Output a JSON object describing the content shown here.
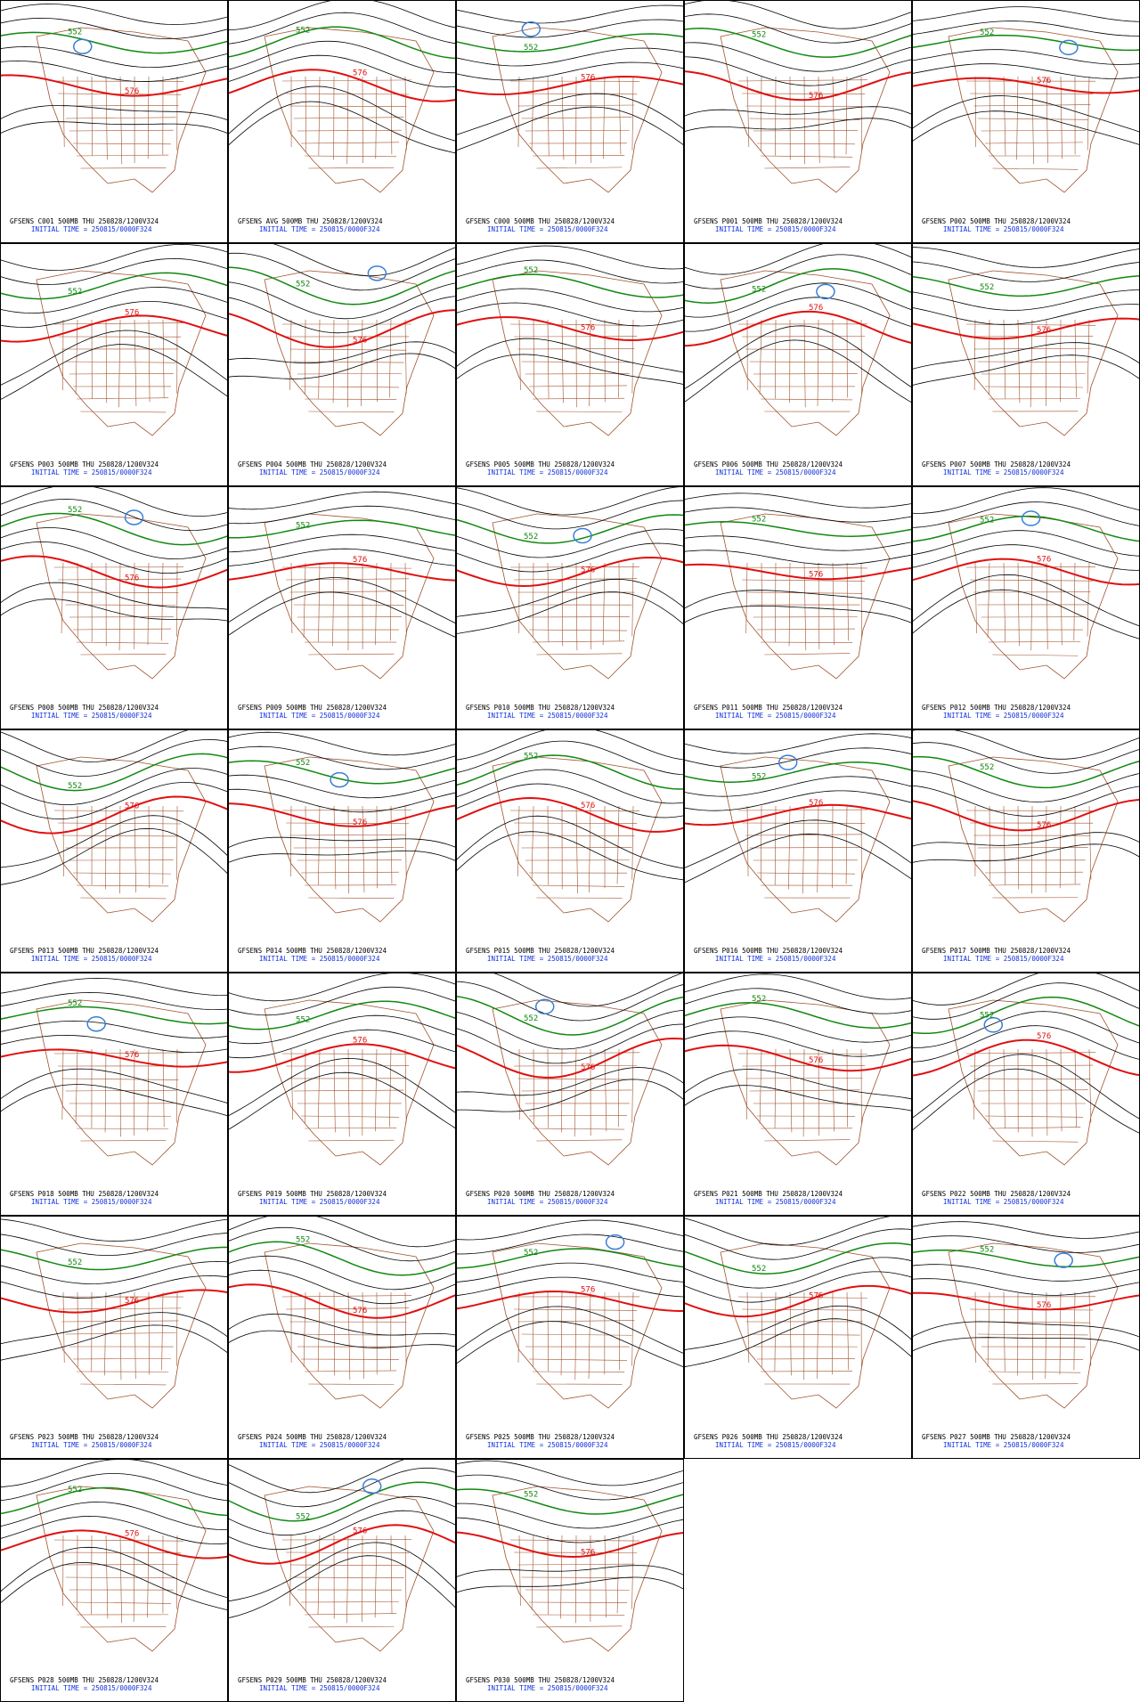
{
  "panels": [
    {
      "title": "GFSENS C001 500MB THU 250828/1200V324",
      "init": "INITIAL TIME = 250815/0000F324",
      "labels": [
        "552",
        "576"
      ]
    },
    {
      "title": "GFSENS AVG 500MB THU 250828/1200V324",
      "init": "INITIAL TIME = 250815/0000F324",
      "labels": [
        "552",
        "576"
      ]
    },
    {
      "title": "GFSENS C000 500MB THU 250828/1200V324",
      "init": "INITIAL TIME = 250815/0000F324",
      "labels": [
        "552",
        "576"
      ]
    },
    {
      "title": "GFSENS P001 500MB THU 250828/1200V324",
      "init": "INITIAL TIME = 250815/0000F324",
      "labels": [
        "552",
        "576"
      ]
    },
    {
      "title": "GFSENS P002 500MB THU 250828/1200V324",
      "init": "INITIAL TIME = 250815/0000F324",
      "labels": [
        "552",
        "576"
      ]
    },
    {
      "title": "GFSENS P003 500MB THU 250828/1200V324",
      "init": "INITIAL TIME = 250815/0000F324",
      "labels": [
        "552",
        "576"
      ]
    },
    {
      "title": "GFSENS P004 500MB THU 250828/1200V324",
      "init": "INITIAL TIME = 250815/0000F324",
      "labels": [
        "552",
        "576"
      ]
    },
    {
      "title": "GFSENS P005 500MB THU 250828/1200V324",
      "init": "INITIAL TIME = 250815/0000F324",
      "labels": [
        "552",
        "576"
      ]
    },
    {
      "title": "GFSENS P006 500MB THU 250828/1200V324",
      "init": "INITIAL TIME = 250815/0000F324",
      "labels": [
        "552",
        "576"
      ]
    },
    {
      "title": "GFSENS P007 500MB THU 250828/1200V324",
      "init": "INITIAL TIME = 250815/0000F324",
      "labels": [
        "552",
        "576"
      ]
    },
    {
      "title": "GFSENS P008 500MB THU 250828/1200V324",
      "init": "INITIAL TIME = 250815/0000F324",
      "labels": [
        "552",
        "576"
      ]
    },
    {
      "title": "GFSENS P009 500MB THU 250828/1200V324",
      "init": "INITIAL TIME = 250815/0000F324",
      "labels": [
        "552",
        "576"
      ]
    },
    {
      "title": "GFSENS P010 500MB THU 250828/1200V324",
      "init": "INITIAL TIME = 250815/0000F324",
      "labels": [
        "552",
        "576"
      ]
    },
    {
      "title": "GFSENS P011 500MB THU 250828/1200V324",
      "init": "INITIAL TIME = 250815/0000F324",
      "labels": [
        "552",
        "576"
      ]
    },
    {
      "title": "GFSENS P012 500MB THU 250828/1200V324",
      "init": "INITIAL TIME = 250815/0000F324",
      "labels": [
        "552",
        "576"
      ]
    },
    {
      "title": "GFSENS P013 500MB THU 250828/1200V324",
      "init": "INITIAL TIME = 250815/0000F324",
      "labels": [
        "552",
        "576"
      ]
    },
    {
      "title": "GFSENS P014 500MB THU 250828/1200V324",
      "init": "INITIAL TIME = 250815/0000F324",
      "labels": [
        "552",
        "576"
      ]
    },
    {
      "title": "GFSENS P015 500MB THU 250828/1200V324",
      "init": "INITIAL TIME = 250815/0000F324",
      "labels": [
        "552",
        "576"
      ]
    },
    {
      "title": "GFSENS P016 500MB THU 250828/1200V324",
      "init": "INITIAL TIME = 250815/0000F324",
      "labels": [
        "552",
        "576"
      ]
    },
    {
      "title": "GFSENS P017 500MB THU 250828/1200V324",
      "init": "INITIAL TIME = 250815/0000F324",
      "labels": [
        "552",
        "576"
      ]
    },
    {
      "title": "GFSENS P018 500MB THU 250828/1200V324",
      "init": "INITIAL TIME = 250815/0000F324",
      "labels": [
        "552",
        "576"
      ]
    },
    {
      "title": "GFSENS P019 500MB THU 250828/1200V324",
      "init": "INITIAL TIME = 250815/0000F324",
      "labels": [
        "552",
        "576"
      ]
    },
    {
      "title": "GFSENS P020 500MB THU 250828/1200V324",
      "init": "INITIAL TIME = 250815/0000F324",
      "labels": [
        "552",
        "576"
      ]
    },
    {
      "title": "GFSENS P021 500MB THU 250828/1200V324",
      "init": "INITIAL TIME = 250815/0000F324",
      "labels": [
        "552",
        "576"
      ]
    },
    {
      "title": "GFSENS P022 500MB THU 250828/1200V324",
      "init": "INITIAL TIME = 250815/0000F324",
      "labels": [
        "552",
        "576"
      ]
    },
    {
      "title": "GFSENS P023 500MB THU 250828/1200V324",
      "init": "INITIAL TIME = 250815/0000F324",
      "labels": [
        "552",
        "576"
      ]
    },
    {
      "title": "GFSENS P024 500MB THU 250828/1200V324",
      "init": "INITIAL TIME = 250815/0000F324",
      "labels": [
        "552",
        "576"
      ]
    },
    {
      "title": "GFSENS P025 500MB THU 250828/1200V324",
      "init": "INITIAL TIME = 250815/0000F324",
      "labels": [
        "552",
        "576"
      ]
    },
    {
      "title": "GFSENS P026 500MB THU 250828/1200V324",
      "init": "INITIAL TIME = 250815/0000F324",
      "labels": [
        "552",
        "576"
      ]
    },
    {
      "title": "GFSENS P027 500MB THU 250828/1200V324",
      "init": "INITIAL TIME = 250815/0000F324",
      "labels": [
        "552",
        "576"
      ]
    },
    {
      "title": "GFSENS P028 500MB THU 250828/1200V324",
      "init": "INITIAL TIME = 250815/0000F324",
      "labels": [
        "552",
        "576"
      ]
    },
    {
      "title": "GFSENS P029 500MB THU 250828/1200V324",
      "init": "INITIAL TIME = 250815/0000F324",
      "labels": [
        "552",
        "576"
      ]
    },
    {
      "title": "GFSENS P030 500MB THU 250828/1200V324",
      "init": "INITIAL TIME = 250815/0000F324",
      "labels": [
        "552",
        "576"
      ]
    }
  ]
}
